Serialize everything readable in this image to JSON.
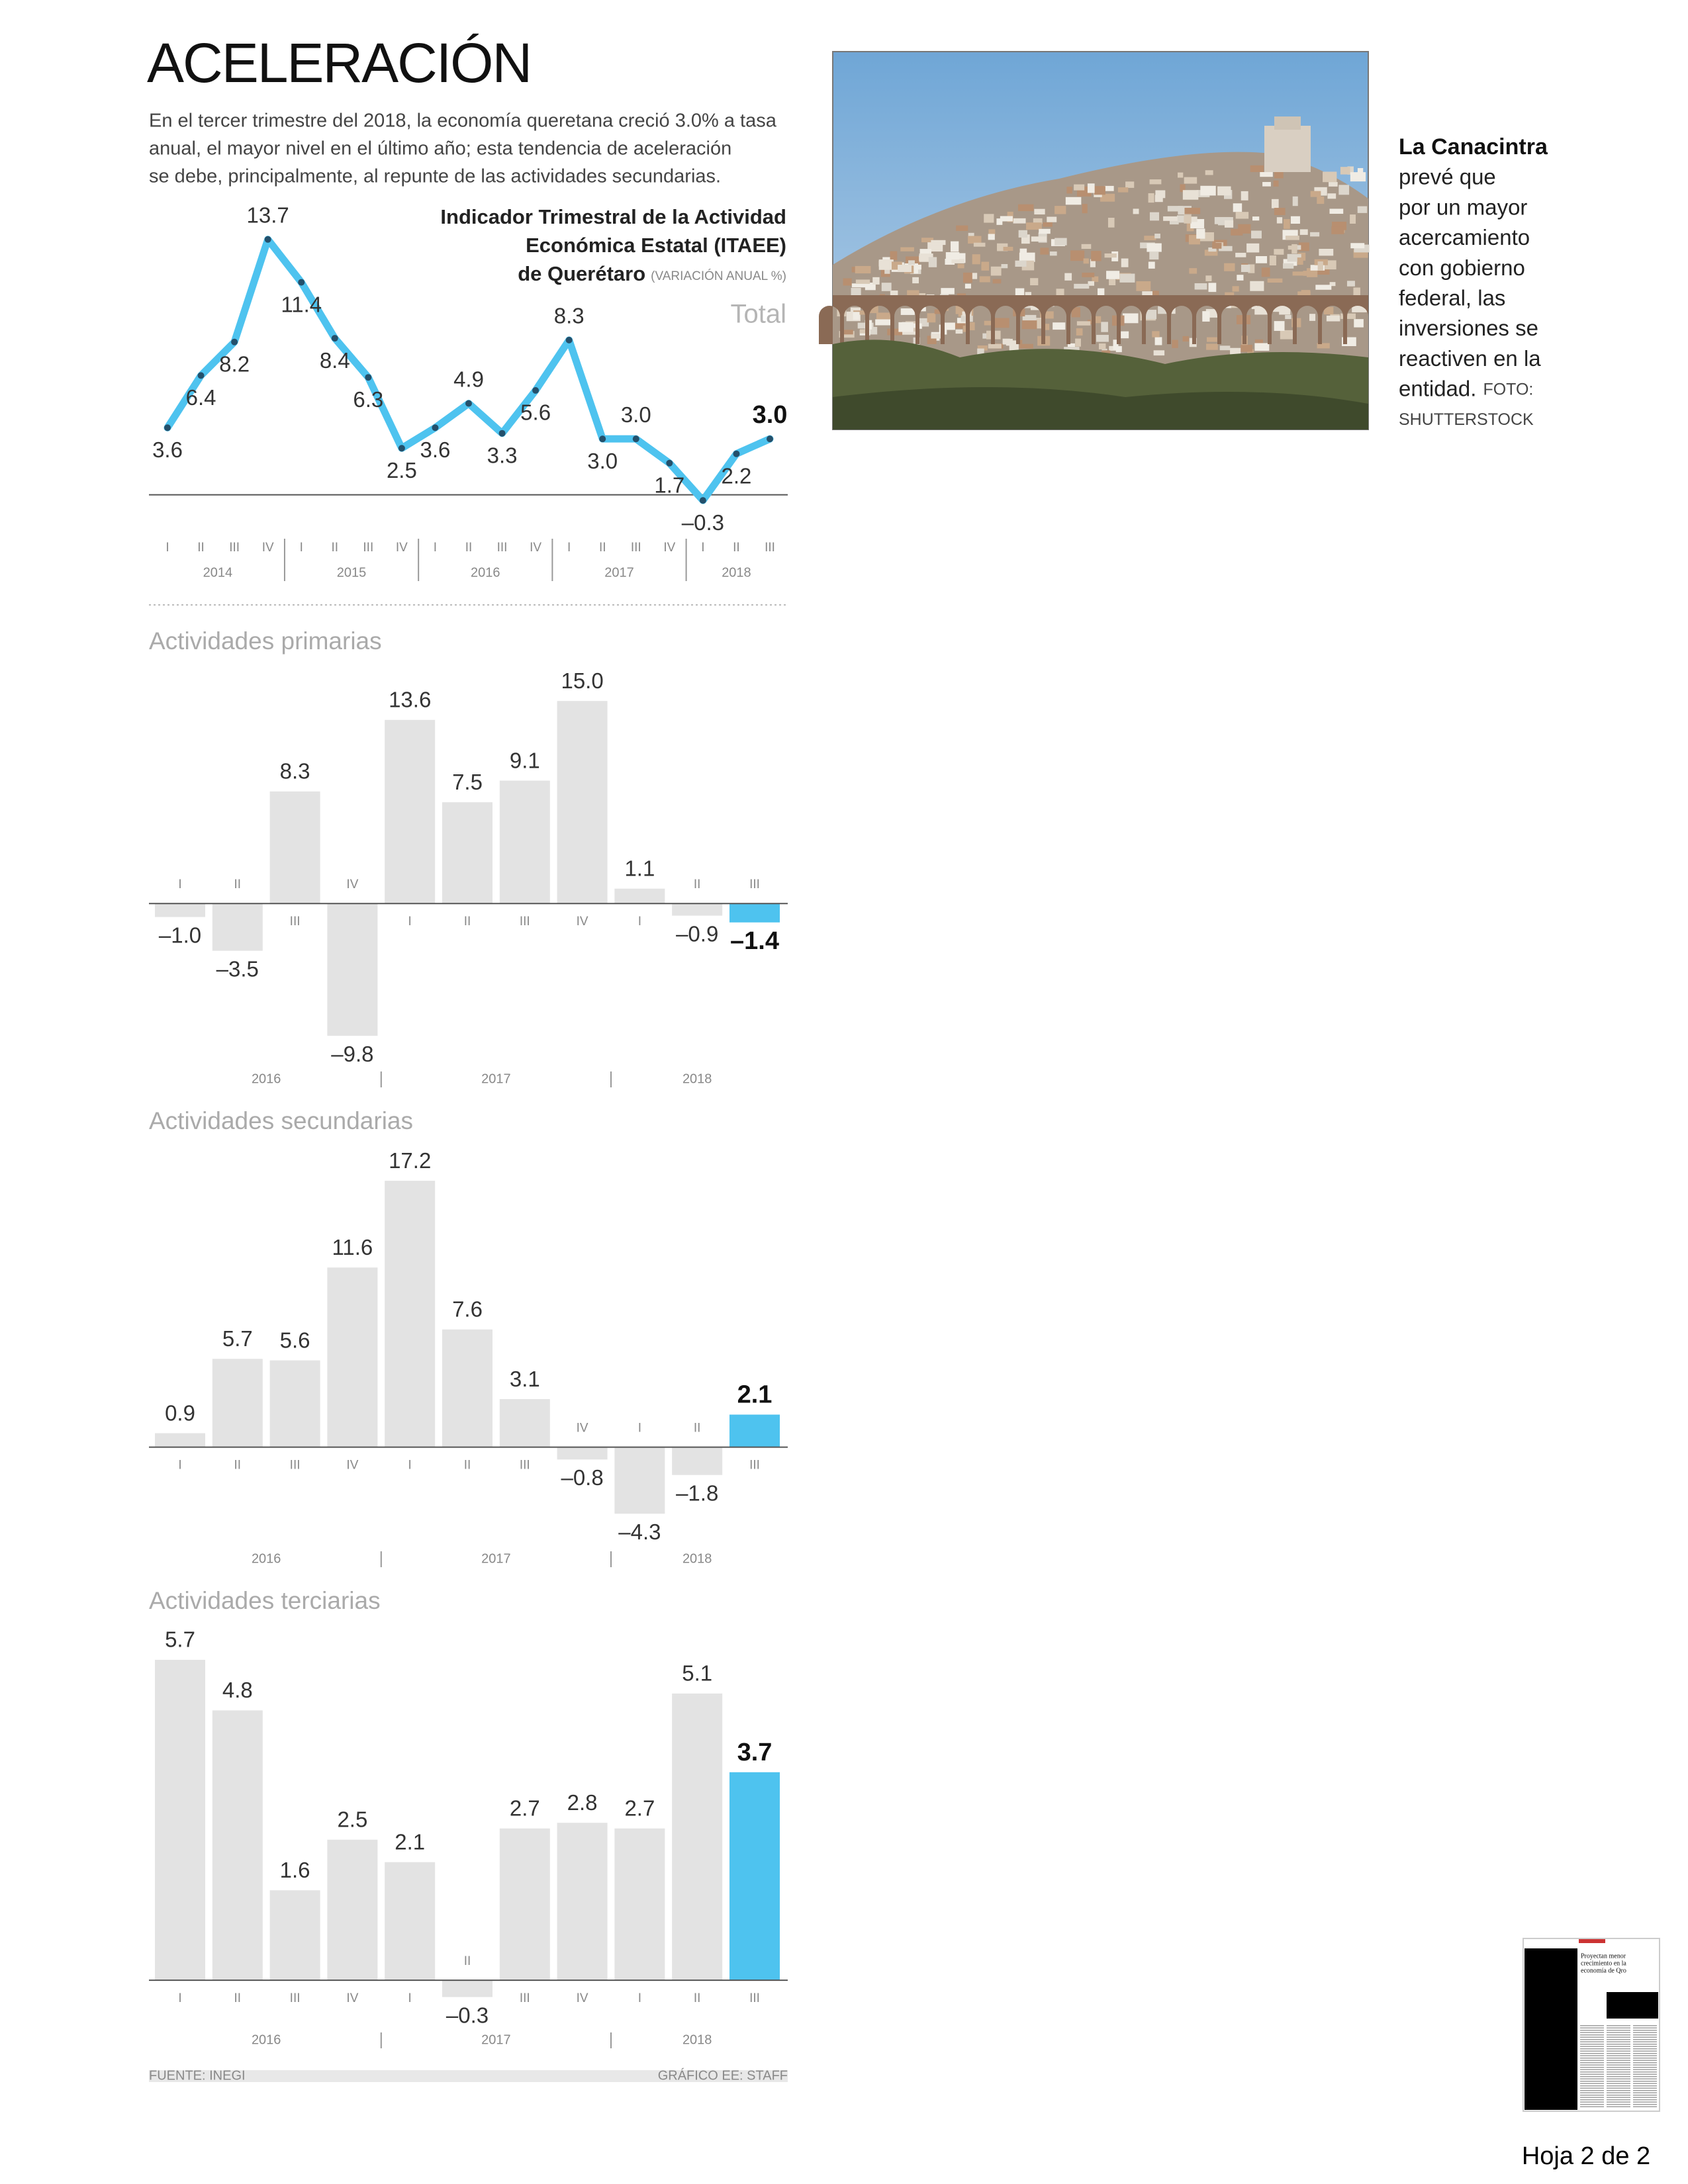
{
  "headline": "ACELERACIÓN",
  "intro_lines": [
    "En el tercer trimestre del 2018, la economía queretana creció 3.0% a tasa",
    "anual, el mayor nivel en el último año; esta tendencia de aceleración",
    "se debe, principalmente, al repunte de las actividades secundarias."
  ],
  "caption": {
    "lead": "La Canacintra",
    "lines": [
      "prevé que",
      "por un mayor",
      "acercamiento",
      "con gobierno",
      "federal, las",
      "inversiones se",
      "reactiven en la",
      "entidad."
    ],
    "credit": [
      "FOTO:",
      "SHUTTERSTOCK"
    ]
  },
  "source": "FUENTE: INEGI",
  "graphic_credit": "GRÁFICO EE: STAFF",
  "thumbnail": {
    "headline_lines": [
      "Proyectan menor",
      "crecimiento en la",
      "economía de Qro"
    ]
  },
  "page_label": "Hoja 2 de 2",
  "chart_data": [
    {
      "type": "line",
      "title_lines": [
        "Indicador Trimestral de la Actividad",
        "Económica Estatal (ITAEE)",
        "de Querétaro"
      ],
      "unit": "(VARIACIÓN ANUAL %)",
      "label": "Total",
      "categories": [
        "I",
        "II",
        "III",
        "IV",
        "I",
        "II",
        "III",
        "IV",
        "I",
        "II",
        "III",
        "IV",
        "I",
        "II",
        "III",
        "IV",
        "I",
        "II",
        "III"
      ],
      "groups": [
        "2014",
        "2015",
        "2016",
        "2017",
        "2018"
      ],
      "values": [
        3.6,
        6.4,
        8.2,
        13.7,
        11.4,
        8.4,
        6.3,
        2.5,
        3.6,
        4.9,
        3.3,
        5.6,
        8.3,
        3.0,
        3.0,
        1.7,
        -0.3,
        2.2,
        3.0
      ],
      "value_labels": [
        "3.6",
        "6.4",
        "8.2",
        "13.7",
        "11.4",
        "8.4",
        "6.3",
        "2.5",
        "3.6",
        "4.9",
        "3.3",
        "5.6",
        "8.3",
        "3.0",
        "3.0",
        "1.7",
        "–0.3",
        "2.2",
        "3.0"
      ],
      "color": "#4ec3ef",
      "ylim": [
        -2,
        16
      ]
    },
    {
      "type": "bar",
      "title": "Actividades primarias",
      "categories": [
        "I",
        "II",
        "III",
        "IV",
        "I",
        "II",
        "III",
        "IV",
        "I",
        "II",
        "III"
      ],
      "groups": [
        "2016",
        "2017",
        "2018"
      ],
      "values": [
        -1.0,
        -3.5,
        8.3,
        -9.8,
        13.6,
        7.5,
        9.1,
        15.0,
        1.1,
        -0.9,
        -1.4
      ],
      "value_labels": [
        "–1.0",
        "–3.5",
        "8.3",
        "–9.8",
        "13.6",
        "7.5",
        "9.1",
        "15.0",
        "1.1",
        "–0.9",
        "–1.4"
      ],
      "color": "#e3e3e3",
      "highlight_color": "#4ec3ef",
      "ylim": [
        -12,
        18
      ]
    },
    {
      "type": "bar",
      "title": "Actividades secundarias",
      "categories": [
        "I",
        "II",
        "III",
        "IV",
        "I",
        "II",
        "III",
        "IV",
        "I",
        "II",
        "III"
      ],
      "groups": [
        "2016",
        "2017",
        "2018"
      ],
      "values": [
        0.9,
        5.7,
        5.6,
        11.6,
        17.2,
        7.6,
        3.1,
        -0.8,
        -4.3,
        -1.8,
        2.1
      ],
      "value_labels": [
        "0.9",
        "5.7",
        "5.6",
        "11.6",
        "17.2",
        "7.6",
        "3.1",
        "–0.8",
        "–4.3",
        "–1.8",
        "2.1"
      ],
      "color": "#e3e3e3",
      "highlight_color": "#4ec3ef",
      "ylim": [
        -6,
        19
      ]
    },
    {
      "type": "bar",
      "title": "Actividades terciarias",
      "categories": [
        "I",
        "II",
        "III",
        "IV",
        "I",
        "II",
        "III",
        "IV",
        "I",
        "II",
        "III"
      ],
      "groups": [
        "2016",
        "2017",
        "2018"
      ],
      "values": [
        5.7,
        4.8,
        1.6,
        2.5,
        2.1,
        -0.3,
        2.7,
        2.8,
        2.7,
        5.1,
        3.7
      ],
      "value_labels": [
        "5.7",
        "4.8",
        "1.6",
        "2.5",
        "2.1",
        "–0.3",
        "2.7",
        "2.8",
        "2.7",
        "5.1",
        "3.7"
      ],
      "color": "#e3e3e3",
      "highlight_color": "#4ec3ef",
      "ylim": [
        -1,
        6.5
      ]
    }
  ]
}
